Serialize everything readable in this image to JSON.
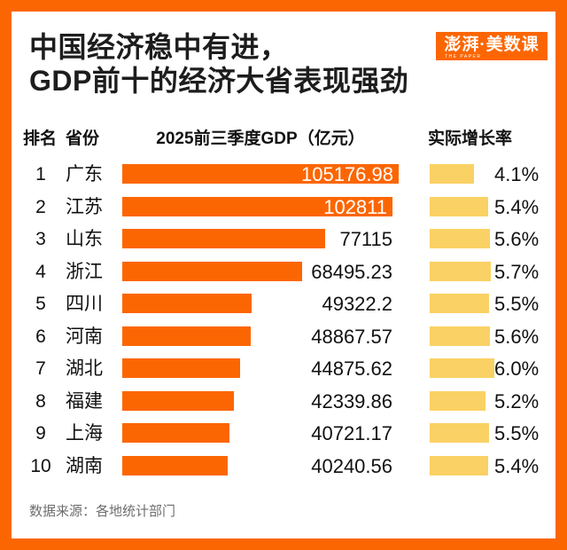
{
  "colors": {
    "accent_orange": "#FC6602",
    "growth_yellow": "#FAD164",
    "text_dark": "#1d1d1d",
    "source_gray": "#6e6e6e"
  },
  "title": {
    "line1": "中国经济稳中有进，",
    "line2": "GDP前十的经济大省表现强劲"
  },
  "logo": {
    "text": "澎湃·美数课",
    "subtext": "THE PAPER"
  },
  "table": {
    "headers": {
      "rank": "排名",
      "province": "省份",
      "gdp": "2025前三季度GDP（亿元）",
      "growth": "实际增长率"
    },
    "rows": [
      {
        "rank": "1",
        "province": "广东",
        "gdp": 105176.98,
        "gdp_label": "105176.98",
        "growth": 4.1,
        "growth_label": "4.1%"
      },
      {
        "rank": "2",
        "province": "江苏",
        "gdp": 102811,
        "gdp_label": "102811",
        "growth": 5.4,
        "growth_label": "5.4%"
      },
      {
        "rank": "3",
        "province": "山东",
        "gdp": 77115,
        "gdp_label": "77115",
        "growth": 5.6,
        "growth_label": "5.6%"
      },
      {
        "rank": "4",
        "province": "浙江",
        "gdp": 68495.23,
        "gdp_label": "68495.23",
        "growth": 5.7,
        "growth_label": "5.7%"
      },
      {
        "rank": "5",
        "province": "四川",
        "gdp": 49322.2,
        "gdp_label": "49322.2",
        "growth": 5.5,
        "growth_label": "5.5%"
      },
      {
        "rank": "6",
        "province": "河南",
        "gdp": 48867.57,
        "gdp_label": "48867.57",
        "growth": 5.6,
        "growth_label": "5.6%"
      },
      {
        "rank": "7",
        "province": "湖北",
        "gdp": 44875.62,
        "gdp_label": "44875.62",
        "growth": 6.0,
        "growth_label": "6.0%"
      },
      {
        "rank": "8",
        "province": "福建",
        "gdp": 42339.86,
        "gdp_label": "42339.86",
        "growth": 5.2,
        "growth_label": "5.2%"
      },
      {
        "rank": "9",
        "province": "上海",
        "gdp": 40721.17,
        "gdp_label": "40721.17",
        "growth": 5.5,
        "growth_label": "5.5%"
      },
      {
        "rank": "10",
        "province": "湖南",
        "gdp": 40240.56,
        "gdp_label": "40240.56",
        "growth": 5.4,
        "growth_label": "5.4%"
      }
    ]
  },
  "footer": {
    "source": "数据来源：各地统计部门"
  },
  "chart_data": {
    "type": "bar",
    "orientation": "horizontal",
    "title": "中国经济稳中有进，GDP前十的经济大省表现强劲",
    "categories": [
      "广东",
      "江苏",
      "山东",
      "浙江",
      "四川",
      "河南",
      "湖北",
      "福建",
      "上海",
      "湖南"
    ],
    "series": [
      {
        "name": "2025前三季度GDP（亿元）",
        "values": [
          105176.98,
          102811,
          77115,
          68495.23,
          49322.2,
          48867.57,
          44875.62,
          42339.86,
          40721.17,
          40240.56
        ]
      },
      {
        "name": "实际增长率",
        "unit": "%",
        "values": [
          4.1,
          5.4,
          5.6,
          5.7,
          5.5,
          5.6,
          6.0,
          5.2,
          5.5,
          5.4
        ]
      }
    ],
    "ranks": [
      1,
      2,
      3,
      4,
      5,
      6,
      7,
      8,
      9,
      10
    ],
    "legend_position": "none",
    "grid": false,
    "source": "数据来源：各地统计部门"
  }
}
